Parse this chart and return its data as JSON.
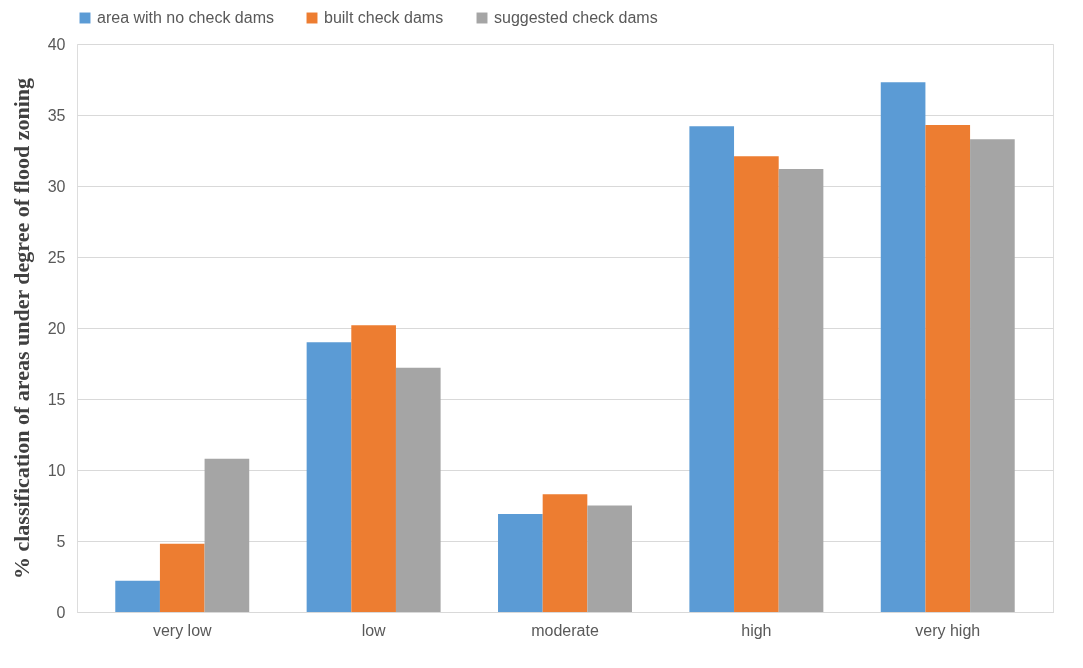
{
  "chart_data": {
    "type": "bar",
    "ylabel": "% classification of areas under degree of flood zoning",
    "categories": [
      "very low",
      "low",
      "moderate",
      "high",
      "very high"
    ],
    "series": [
      {
        "name": "area with no check dams",
        "color": "#5b9bd5",
        "values": [
          2.2,
          19.0,
          6.9,
          34.2,
          37.3
        ]
      },
      {
        "name": "built check dams",
        "color": "#ed7d31",
        "values": [
          4.8,
          20.2,
          8.3,
          32.1,
          34.3
        ]
      },
      {
        "name": "suggested check dams",
        "color": "#a5a5a5",
        "values": [
          10.8,
          17.2,
          7.5,
          31.2,
          33.3
        ]
      }
    ],
    "ylim": [
      0,
      40
    ],
    "yticks": [
      0,
      5,
      10,
      15,
      20,
      25,
      30,
      35,
      40
    ],
    "grid": "y",
    "legend": "top"
  }
}
